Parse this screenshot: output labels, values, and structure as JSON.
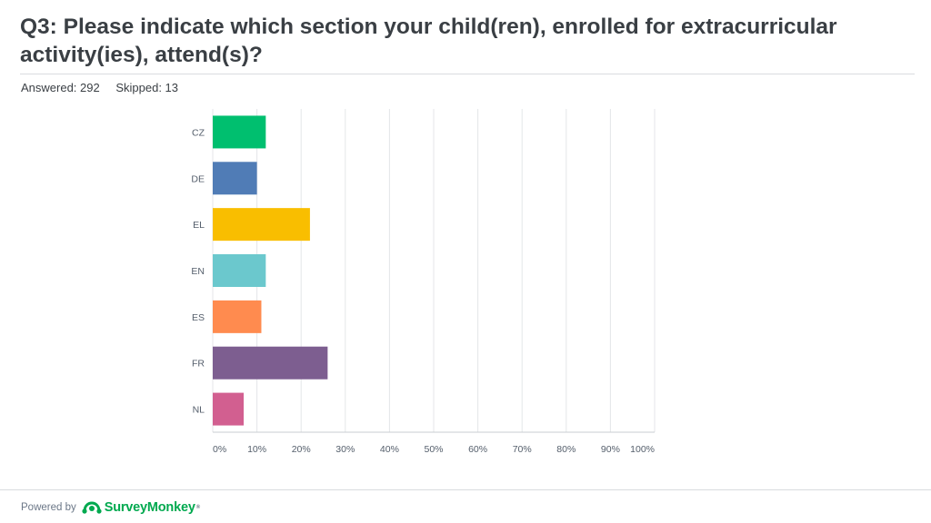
{
  "question": {
    "title": "Q3: Please indicate which section your child(ren), enrolled for extracurricular activity(ies), attend(s)?",
    "answered_label": "Answered: 292",
    "skipped_label": "Skipped: 13"
  },
  "footer": {
    "powered_by": "Powered by",
    "brand": "SurveyMonkey",
    "trademark": "®"
  },
  "chart_data": {
    "type": "bar",
    "orientation": "horizontal",
    "categories": [
      "CZ",
      "DE",
      "EL",
      "EN",
      "ES",
      "FR",
      "NL"
    ],
    "values": [
      12,
      10,
      22,
      12,
      11,
      26,
      7
    ],
    "colors": [
      "#00bf6f",
      "#507cb6",
      "#f9be00",
      "#6bc8cd",
      "#ff8b4f",
      "#7d5e90",
      "#d25f90"
    ],
    "value_unit": "%",
    "xlim": [
      0,
      100
    ],
    "xticks": [
      "0%",
      "10%",
      "20%",
      "30%",
      "40%",
      "50%",
      "60%",
      "70%",
      "80%",
      "90%",
      "100%"
    ],
    "grid": true,
    "legend": "none"
  }
}
